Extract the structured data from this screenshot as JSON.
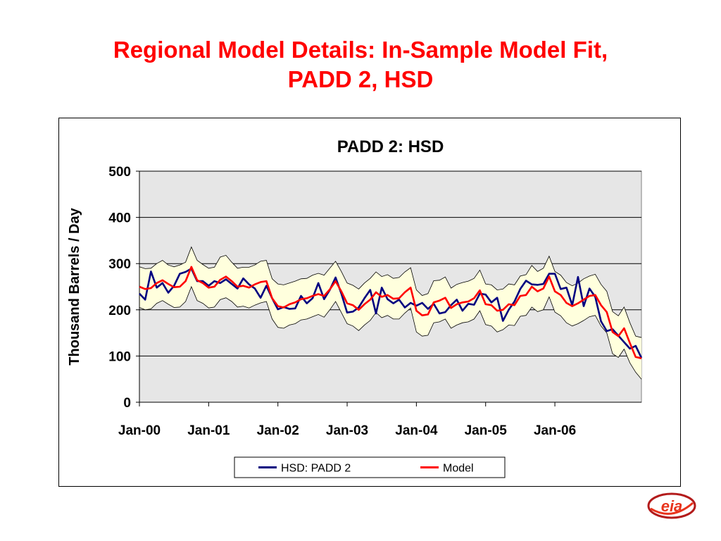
{
  "slide": {
    "title_line1": "Regional Model Details:  In-Sample Model Fit,",
    "title_line2": "PADD 2, HSD"
  },
  "logo": {
    "text": "eia",
    "colors": {
      "accent": "#e8331c",
      "ring": "#b31b1b"
    }
  },
  "chart_data": {
    "type": "line",
    "title": "PADD 2:  HSD",
    "xlabel": "",
    "ylabel": "Thousand Barrels / Day",
    "ylim": [
      0,
      500
    ],
    "yticks": [
      0,
      100,
      200,
      300,
      400,
      500
    ],
    "xticks": [
      "Jan-00",
      "Jan-01",
      "Jan-02",
      "Jan-03",
      "Jan-04",
      "Jan-05",
      "Jan-06"
    ],
    "x_start": "Jan-00",
    "legend_position": "bottom",
    "grid": true,
    "plot_background": "#e6e6e6",
    "series": [
      {
        "name": "HSD:  PADD 2",
        "color": "#000080",
        "values": [
          235,
          222,
          283,
          248,
          258,
          237,
          252,
          278,
          282,
          289,
          262,
          262,
          252,
          262,
          258,
          266,
          256,
          246,
          268,
          255,
          246,
          226,
          252,
          225,
          201,
          206,
          202,
          203,
          230,
          214,
          225,
          258,
          223,
          243,
          270,
          235,
          194,
          196,
          205,
          225,
          243,
          192,
          248,
          223,
          214,
          222,
          205,
          215,
          209,
          215,
          202,
          213,
          192,
          195,
          210,
          222,
          198,
          213,
          211,
          235,
          233,
          216,
          226,
          176,
          200,
          218,
          245,
          263,
          255,
          254,
          256,
          278,
          278,
          245,
          248,
          210,
          271,
          208,
          246,
          228,
          175,
          154,
          158,
          144,
          130,
          116,
          122,
          96
        ]
      },
      {
        "name": "Model",
        "color": "#ff0000",
        "values": [
          250,
          245,
          247,
          258,
          264,
          256,
          249,
          250,
          262,
          293,
          264,
          258,
          248,
          250,
          265,
          272,
          262,
          250,
          252,
          248,
          255,
          260,
          262,
          225,
          208,
          205,
          212,
          216,
          223,
          225,
          230,
          234,
          230,
          244,
          262,
          240,
          214,
          210,
          200,
          212,
          222,
          238,
          228,
          232,
          224,
          225,
          238,
          248,
          198,
          188,
          190,
          216,
          220,
          226,
          204,
          212,
          216,
          218,
          225,
          242,
          212,
          210,
          198,
          200,
          212,
          210,
          230,
          232,
          250,
          240,
          246,
          272,
          240,
          232,
          215,
          208,
          214,
          222,
          230,
          232,
          210,
          195,
          152,
          143,
          160,
          128,
          98,
          95
        ]
      }
    ],
    "band": {
      "upper": [
        293,
        289,
        290,
        300,
        307,
        297,
        293,
        297,
        303,
        336,
        307,
        298,
        290,
        292,
        314,
        318,
        303,
        290,
        292,
        292,
        297,
        305,
        307,
        267,
        256,
        254,
        258,
        262,
        267,
        268,
        275,
        279,
        275,
        290,
        305,
        283,
        258,
        253,
        245,
        258,
        268,
        282,
        272,
        276,
        268,
        270,
        282,
        291,
        243,
        231,
        235,
        263,
        264,
        271,
        247,
        255,
        259,
        262,
        268,
        286,
        256,
        254,
        243,
        245,
        256,
        254,
        273,
        276,
        296,
        283,
        290,
        316,
        283,
        275,
        259,
        252,
        258,
        267,
        273,
        277,
        255,
        240,
        196,
        187,
        206,
        172,
        143,
        140
      ],
      "lower": [
        205,
        200,
        202,
        214,
        220,
        212,
        205,
        206,
        218,
        250,
        220,
        214,
        204,
        206,
        222,
        226,
        218,
        206,
        208,
        204,
        210,
        215,
        218,
        180,
        162,
        160,
        167,
        170,
        178,
        180,
        185,
        190,
        184,
        200,
        218,
        194,
        170,
        165,
        155,
        167,
        177,
        194,
        183,
        188,
        180,
        180,
        193,
        204,
        152,
        143,
        145,
        172,
        174,
        180,
        160,
        167,
        172,
        174,
        180,
        198,
        168,
        165,
        152,
        157,
        167,
        166,
        186,
        188,
        206,
        196,
        200,
        228,
        195,
        187,
        172,
        165,
        170,
        177,
        185,
        188,
        165,
        150,
        105,
        97,
        115,
        85,
        65,
        50
      ]
    }
  }
}
